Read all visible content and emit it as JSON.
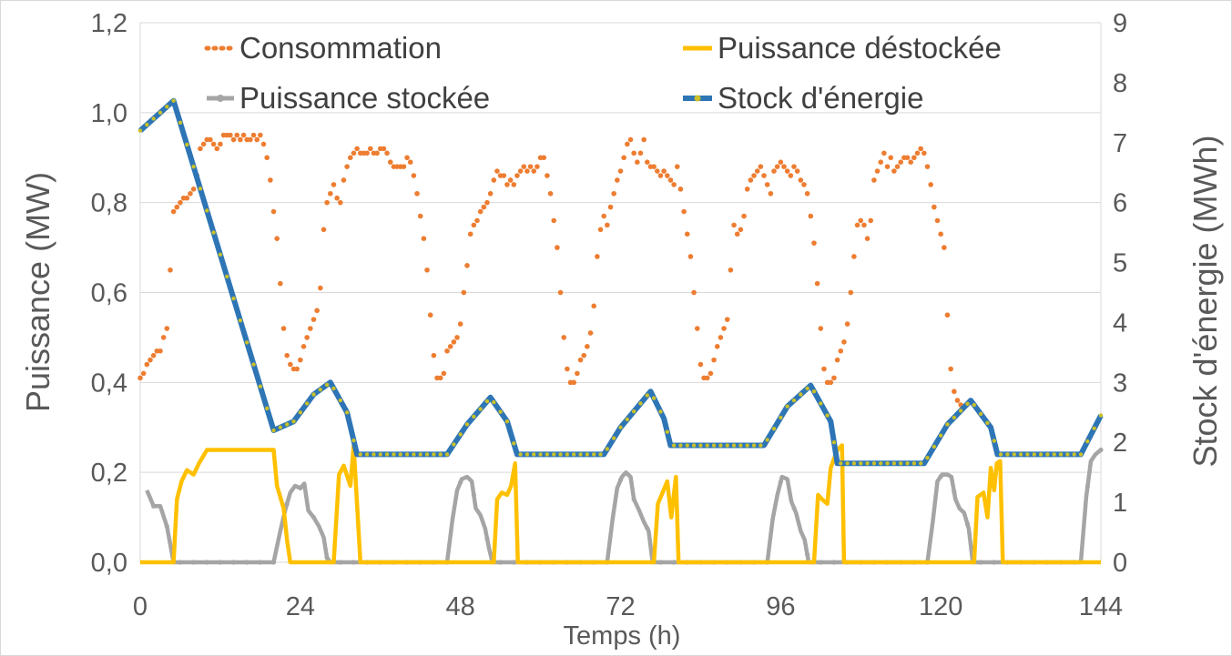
{
  "chart_data": {
    "type": "line",
    "xlabel": "Temps (h)",
    "ylabel": "Puissance (MW)",
    "ylabel_right": "Stock d'énergie (MWh)",
    "xlim": [
      0,
      144
    ],
    "ylim": [
      0,
      1.2
    ],
    "ylim_right": [
      0,
      9
    ],
    "x_ticks": [
      "0",
      "24",
      "48",
      "72",
      "96",
      "120",
      "144"
    ],
    "y_ticks": [
      "0,0",
      "0,2",
      "0,4",
      "0,6",
      "0,8",
      "1,0",
      "1,2"
    ],
    "y_ticks_right": [
      "0",
      "1",
      "2",
      "3",
      "4",
      "5",
      "6",
      "7",
      "8",
      "9"
    ],
    "grid": "horizontal",
    "legend_position": "top",
    "colors": {
      "consommation": "#ED7D31",
      "destockee": "#FFC000",
      "stockee": "#A5A5A5",
      "stock": "#2E75B6",
      "stock_marker": "#C9C02A"
    },
    "series": [
      {
        "name": "Consommation",
        "axis": "left",
        "style": "dotted",
        "x_start": 0,
        "x_step": 0.5,
        "values": [
          0.41,
          0.42,
          0.44,
          0.45,
          0.46,
          0.47,
          0.47,
          0.5,
          0.52,
          0.65,
          0.78,
          0.79,
          0.8,
          0.81,
          0.81,
          0.82,
          0.83,
          0.86,
          0.92,
          0.93,
          0.94,
          0.94,
          0.93,
          0.92,
          0.93,
          0.95,
          0.95,
          0.95,
          0.94,
          0.95,
          0.94,
          0.95,
          0.94,
          0.94,
          0.95,
          0.94,
          0.95,
          0.93,
          0.9,
          0.85,
          0.78,
          0.72,
          0.62,
          0.52,
          0.46,
          0.44,
          0.43,
          0.43,
          0.45,
          0.48,
          0.5,
          0.52,
          0.54,
          0.56,
          0.61,
          0.74,
          0.8,
          0.82,
          0.84,
          0.81,
          0.8,
          0.85,
          0.88,
          0.9,
          0.91,
          0.92,
          0.91,
          0.91,
          0.91,
          0.92,
          0.91,
          0.91,
          0.92,
          0.92,
          0.91,
          0.89,
          0.88,
          0.88,
          0.88,
          0.88,
          0.9,
          0.89,
          0.86,
          0.82,
          0.77,
          0.72,
          0.65,
          0.55,
          0.46,
          0.41,
          0.41,
          0.42,
          0.47,
          0.48,
          0.49,
          0.5,
          0.53,
          0.6,
          0.66,
          0.73,
          0.75,
          0.76,
          0.78,
          0.79,
          0.8,
          0.82,
          0.85,
          0.87,
          0.86,
          0.86,
          0.84,
          0.85,
          0.84,
          0.86,
          0.87,
          0.88,
          0.87,
          0.88,
          0.87,
          0.88,
          0.9,
          0.9,
          0.86,
          0.82,
          0.76,
          0.7,
          0.6,
          0.5,
          0.43,
          0.4,
          0.4,
          0.42,
          0.45,
          0.46,
          0.48,
          0.51,
          0.57,
          0.68,
          0.74,
          0.77,
          0.75,
          0.79,
          0.82,
          0.85,
          0.87,
          0.9,
          0.93,
          0.94,
          0.91,
          0.89,
          0.91,
          0.94,
          0.89,
          0.88,
          0.88,
          0.87,
          0.86,
          0.87,
          0.86,
          0.85,
          0.84,
          0.88,
          0.83,
          0.78,
          0.73,
          0.68,
          0.6,
          0.52,
          0.44,
          0.41,
          0.41,
          0.42,
          0.45,
          0.48,
          0.5,
          0.52,
          0.54,
          0.65,
          0.75,
          0.73,
          0.74,
          0.77,
          0.83,
          0.85,
          0.86,
          0.87,
          0.88,
          0.86,
          0.84,
          0.82,
          0.87,
          0.88,
          0.89,
          0.88,
          0.87,
          0.86,
          0.88,
          0.87,
          0.85,
          0.84,
          0.82,
          0.77,
          0.71,
          0.62,
          0.52,
          0.43,
          0.4,
          0.4,
          0.41,
          0.45,
          0.47,
          0.49,
          0.53,
          0.6,
          0.68,
          0.75,
          0.76,
          0.75,
          0.72,
          0.76,
          0.85,
          0.87,
          0.89,
          0.91,
          0.88,
          0.9,
          0.87,
          0.88,
          0.89,
          0.9,
          0.9,
          0.89,
          0.9,
          0.91,
          0.92,
          0.91,
          0.88,
          0.84,
          0.79,
          0.76,
          0.73,
          0.7,
          0.55,
          0.43,
          0.38,
          0.36,
          0.35
        ]
      },
      {
        "name": "Puissance déstockée",
        "axis": "left",
        "style": "solid",
        "points": [
          [
            0,
            0
          ],
          [
            5,
            0
          ],
          [
            5.5,
            0.14
          ],
          [
            6.2,
            0.18
          ],
          [
            7,
            0.205
          ],
          [
            8,
            0.195
          ],
          [
            8.8,
            0.22
          ],
          [
            10,
            0.25
          ],
          [
            12,
            0.25
          ],
          [
            14,
            0.25
          ],
          [
            16,
            0.25
          ],
          [
            18,
            0.25
          ],
          [
            20,
            0.25
          ],
          [
            20.5,
            0.17
          ],
          [
            21.5,
            0.12
          ],
          [
            22,
            0.05
          ],
          [
            22.5,
            0
          ],
          [
            29,
            0
          ],
          [
            29.8,
            0.195
          ],
          [
            30.5,
            0.215
          ],
          [
            31.5,
            0.17
          ],
          [
            32,
            0.26
          ],
          [
            32.5,
            0.13
          ],
          [
            33,
            0
          ],
          [
            53,
            0
          ],
          [
            53.5,
            0.14
          ],
          [
            54.2,
            0.155
          ],
          [
            55,
            0.15
          ],
          [
            55.6,
            0.17
          ],
          [
            56.2,
            0.22
          ],
          [
            56.6,
            0
          ],
          [
            77,
            0
          ],
          [
            77.6,
            0.13
          ],
          [
            78.3,
            0.155
          ],
          [
            79,
            0.18
          ],
          [
            79.6,
            0.1
          ],
          [
            80.3,
            0.19
          ],
          [
            80.7,
            0
          ],
          [
            101,
            0
          ],
          [
            101.6,
            0.15
          ],
          [
            102.2,
            0.14
          ],
          [
            103,
            0.13
          ],
          [
            103.5,
            0.21
          ],
          [
            104.5,
            0.25
          ],
          [
            105.2,
            0.26
          ],
          [
            105.5,
            0
          ],
          [
            125,
            0
          ],
          [
            125.5,
            0.145
          ],
          [
            126.4,
            0.155
          ],
          [
            127,
            0.1
          ],
          [
            127.5,
            0.21
          ],
          [
            128,
            0.16
          ],
          [
            128.4,
            0.22
          ],
          [
            128.9,
            0.225
          ],
          [
            129.3,
            0
          ],
          [
            144,
            0
          ]
        ]
      },
      {
        "name": "Puissance stockée",
        "axis": "left",
        "style": "solid-markers",
        "points": [
          [
            1,
            0.16
          ],
          [
            2,
            0.125
          ],
          [
            3,
            0.125
          ],
          [
            4,
            0.08
          ],
          [
            5,
            0
          ],
          [
            6,
            0
          ],
          [
            8,
            0
          ],
          [
            10,
            0
          ],
          [
            12,
            0
          ],
          [
            14,
            0
          ],
          [
            16,
            0
          ],
          [
            18,
            0
          ],
          [
            20,
            0
          ],
          [
            21,
            0.07
          ],
          [
            21.8,
            0.12
          ],
          [
            22.5,
            0.155
          ],
          [
            23.2,
            0.17
          ],
          [
            24,
            0.165
          ],
          [
            24.6,
            0.175
          ],
          [
            25.2,
            0.115
          ],
          [
            26,
            0.1
          ],
          [
            26.8,
            0.08
          ],
          [
            27.5,
            0.055
          ],
          [
            28,
            0.01
          ],
          [
            28.5,
            0
          ],
          [
            46,
            0
          ],
          [
            46.8,
            0.095
          ],
          [
            47.5,
            0.16
          ],
          [
            48.2,
            0.185
          ],
          [
            49,
            0.19
          ],
          [
            49.7,
            0.18
          ],
          [
            50.3,
            0.12
          ],
          [
            51,
            0.105
          ],
          [
            51.7,
            0.075
          ],
          [
            52.3,
            0.03
          ],
          [
            52.8,
            0
          ],
          [
            70,
            0
          ],
          [
            70.8,
            0.095
          ],
          [
            71.5,
            0.165
          ],
          [
            72.2,
            0.19
          ],
          [
            72.8,
            0.2
          ],
          [
            73.5,
            0.19
          ],
          [
            74,
            0.14
          ],
          [
            74.8,
            0.115
          ],
          [
            75.5,
            0.09
          ],
          [
            76.2,
            0.07
          ],
          [
            76.8,
            0
          ],
          [
            94,
            0
          ],
          [
            94.8,
            0.095
          ],
          [
            95.5,
            0.15
          ],
          [
            96.2,
            0.19
          ],
          [
            97,
            0.185
          ],
          [
            97.6,
            0.135
          ],
          [
            98.3,
            0.11
          ],
          [
            99,
            0.07
          ],
          [
            99.6,
            0.05
          ],
          [
            100.2,
            0
          ],
          [
            118,
            0
          ],
          [
            118.8,
            0.09
          ],
          [
            119.5,
            0.18
          ],
          [
            120.2,
            0.195
          ],
          [
            121,
            0.195
          ],
          [
            121.6,
            0.19
          ],
          [
            122.2,
            0.14
          ],
          [
            122.8,
            0.12
          ],
          [
            123.5,
            0.11
          ],
          [
            124.2,
            0.075
          ],
          [
            124.8,
            0
          ],
          [
            141,
            0
          ],
          [
            141.8,
            0.145
          ],
          [
            142.5,
            0.225
          ],
          [
            143.2,
            0.24
          ],
          [
            144,
            0.25
          ]
        ]
      },
      {
        "name": "Stock d'énergie",
        "axis": "right",
        "style": "solid-markers",
        "points": [
          [
            0,
            7.2
          ],
          [
            5,
            7.7
          ],
          [
            20,
            2.2
          ],
          [
            23,
            2.35
          ],
          [
            26,
            2.8
          ],
          [
            28.5,
            3.0
          ],
          [
            31,
            2.5
          ],
          [
            32.5,
            1.8
          ],
          [
            46,
            1.8
          ],
          [
            49,
            2.3
          ],
          [
            52.5,
            2.75
          ],
          [
            55,
            2.35
          ],
          [
            56.5,
            1.8
          ],
          [
            69.5,
            1.8
          ],
          [
            72,
            2.25
          ],
          [
            76.5,
            2.85
          ],
          [
            78.5,
            2.4
          ],
          [
            79.5,
            1.95
          ],
          [
            93.5,
            1.95
          ],
          [
            97,
            2.6
          ],
          [
            100.5,
            2.95
          ],
          [
            103.5,
            2.35
          ],
          [
            104.5,
            1.65
          ],
          [
            117.5,
            1.65
          ],
          [
            121,
            2.3
          ],
          [
            124.5,
            2.7
          ],
          [
            127.5,
            2.25
          ],
          [
            128.5,
            1.8
          ],
          [
            141,
            1.8
          ],
          [
            144,
            2.45
          ]
        ]
      }
    ]
  }
}
